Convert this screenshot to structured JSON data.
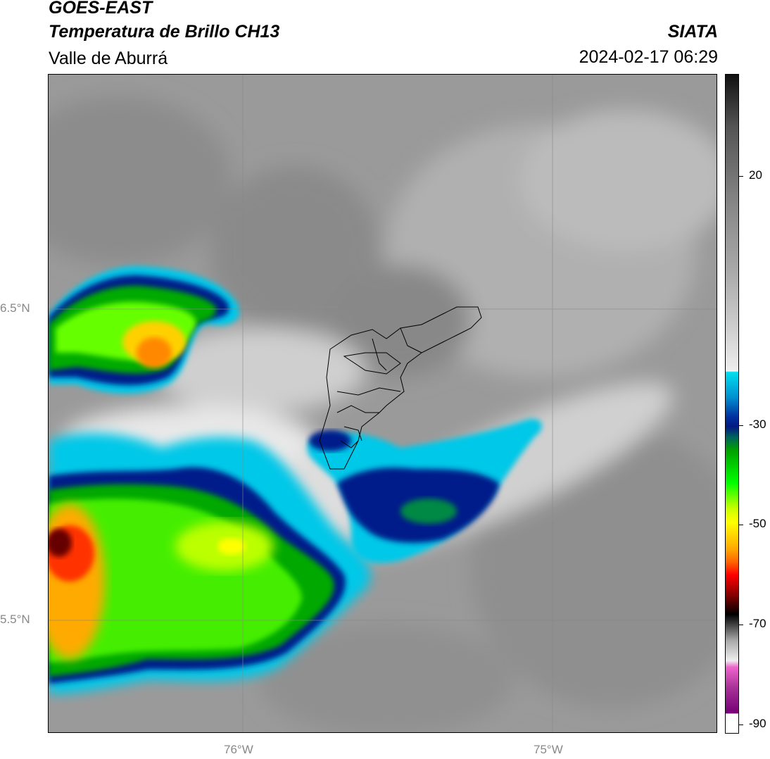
{
  "header": {
    "satellite": "GOES-EAST",
    "product": "Temperatura de Brillo CH13",
    "region": "Valle de Aburrá",
    "agency": "SIATA",
    "datetime": "2024-02-17 06:29"
  },
  "map": {
    "lat_labels": [
      "6.5°N",
      "5.5°N"
    ],
    "lon_labels": [
      "76°W",
      "75°W"
    ]
  },
  "colorbar": {
    "tick_labels": [
      "20",
      "-30",
      "-50",
      "-70",
      "-90"
    ],
    "colors": {
      "cyan": "#00d8e8",
      "navy": "#001a80",
      "green": "#00c800",
      "yellow": "#ffff00",
      "orange": "#ff9900",
      "red": "#e00000",
      "black": "#000000",
      "magenta": "#cc55bb"
    }
  }
}
